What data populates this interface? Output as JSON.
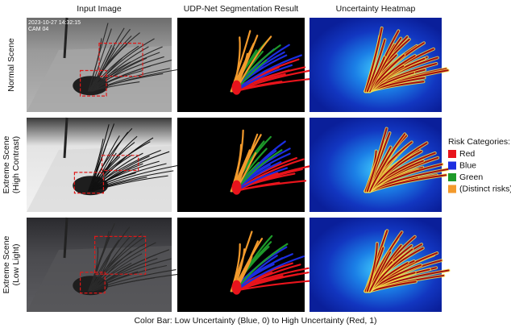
{
  "columns": [
    "Input Image",
    "UDP-Net Segmentation Result",
    "Uncertainty Heatmap"
  ],
  "rows": [
    [
      "Normal Scene"
    ],
    [
      "Extreme Scene",
      "(High Contrast)"
    ],
    [
      "Extreme Scene",
      "(Low Light)"
    ]
  ],
  "timestamp": {
    "date": "2023-10-27 14:32:15",
    "camera": "CAM 04"
  },
  "legend": {
    "title": "Risk Categories:",
    "items": [
      {
        "label": "Red",
        "color": "#e8141c"
      },
      {
        "label": "Blue",
        "color": "#1c2ee0"
      },
      {
        "label": "Green",
        "color": "#1e9a2a"
      },
      {
        "label": "(Distinct risks)",
        "color": "#f39a2c"
      }
    ]
  },
  "caption": "Color Bar: Low Uncertainty (Blue, 0) to High Uncertainty (Red, 1)"
}
